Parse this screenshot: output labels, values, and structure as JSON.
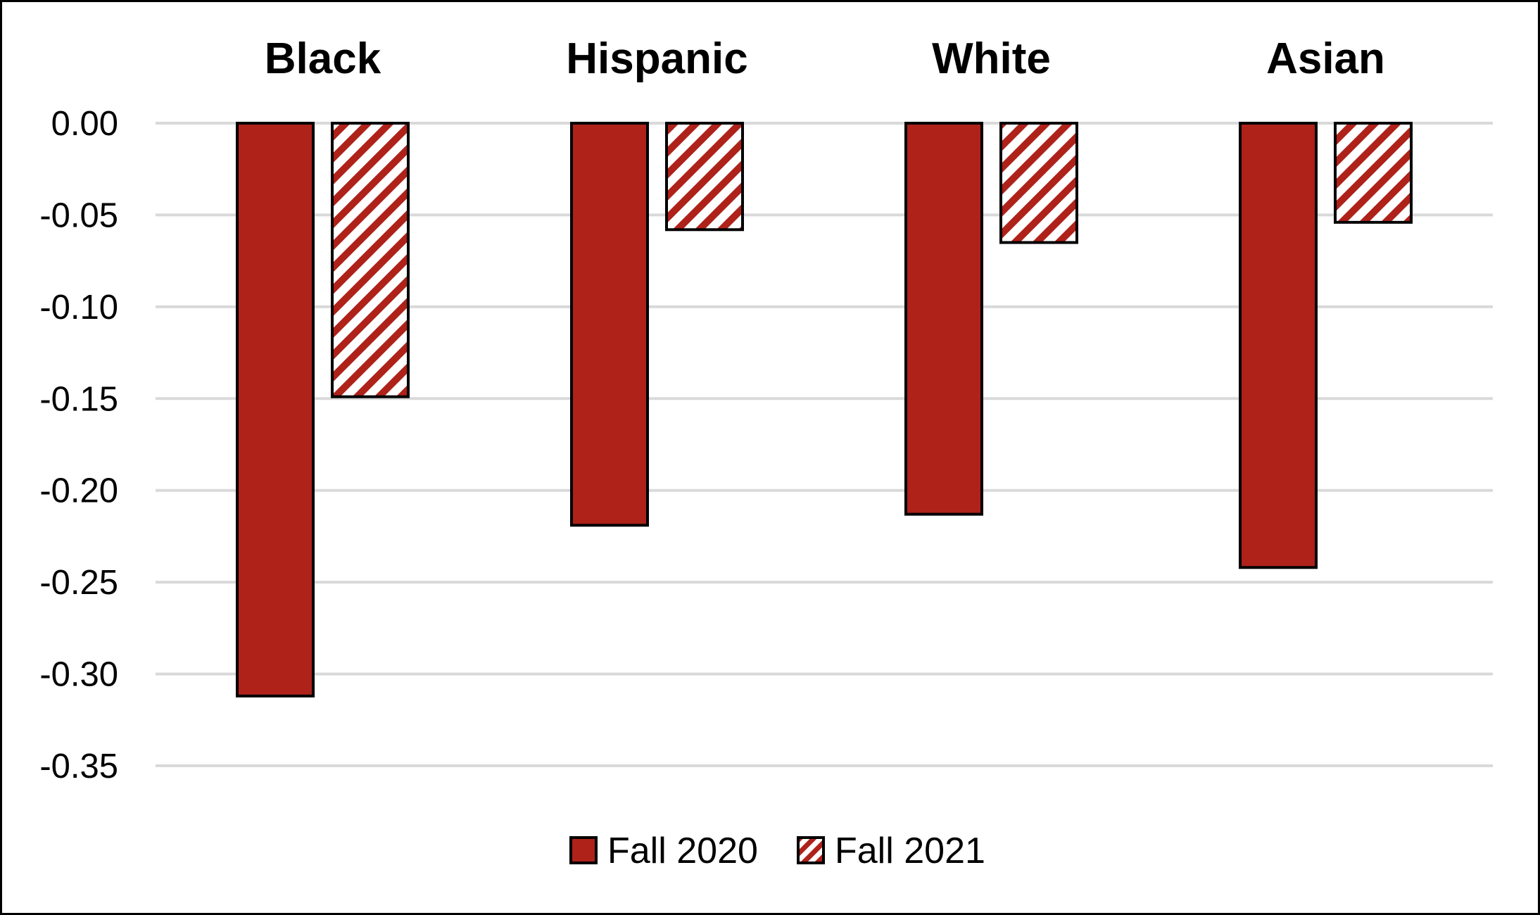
{
  "chart_data": {
    "type": "bar",
    "title": "",
    "xlabel": "",
    "ylabel": "",
    "categories": [
      "Black",
      "Hispanic",
      "White",
      "Asian"
    ],
    "category_axis_position": "top",
    "series": [
      {
        "name": "Fall 2020",
        "values": [
          -0.312,
          -0.219,
          -0.213,
          -0.242
        ],
        "fill": "solid"
      },
      {
        "name": "Fall 2021",
        "values": [
          -0.149,
          -0.058,
          -0.065,
          -0.054
        ],
        "fill": "diagonal-stripes"
      }
    ],
    "ylim": [
      -0.35,
      0.0
    ],
    "yticks": [
      0.0,
      -0.05,
      -0.1,
      -0.15,
      -0.2,
      -0.25,
      -0.3,
      -0.35
    ],
    "ytick_labels": [
      "0.00",
      "-0.05",
      "-0.10",
      "-0.15",
      "-0.20",
      "-0.25",
      "-0.30",
      "-0.35"
    ],
    "grid": true,
    "legend": "bottom-center",
    "colors": {
      "bar": "#AE221A",
      "outline": "#000000",
      "grid": "#D9D9D9",
      "stripe_bg": "#FFFFFF"
    }
  }
}
